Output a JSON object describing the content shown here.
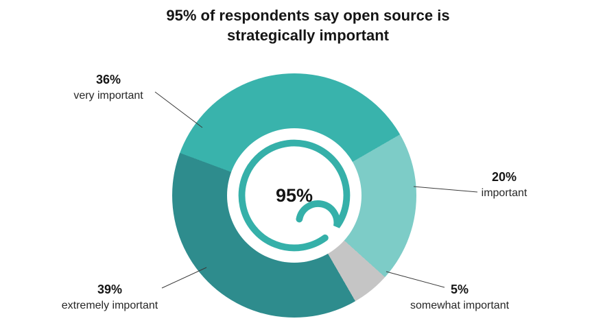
{
  "title": {
    "line1": "95% of respondents say open source is",
    "line2": "strategically important"
  },
  "chart_data": {
    "type": "pie",
    "subtype": "donut",
    "title": "95% of respondents say open source is strategically important",
    "center_label": "95%",
    "center_value": 95,
    "start_angle_deg": -69.6,
    "accent_color": "#35b0a9",
    "line_color": "#3a3a3a",
    "legend_position": "callout-labels",
    "segments": [
      {
        "label": "very important",
        "percent_label": "36%",
        "value": 36,
        "color": "#39b3ac"
      },
      {
        "label": "important",
        "percent_label": "20%",
        "value": 20,
        "color": "#7dccc7"
      },
      {
        "label": "somewhat important",
        "percent_label": "5%",
        "value": 5,
        "color": "#c5c5c5"
      },
      {
        "label": "extremely important",
        "percent_label": "39%",
        "value": 39,
        "color": "#2e8c8d"
      }
    ]
  }
}
